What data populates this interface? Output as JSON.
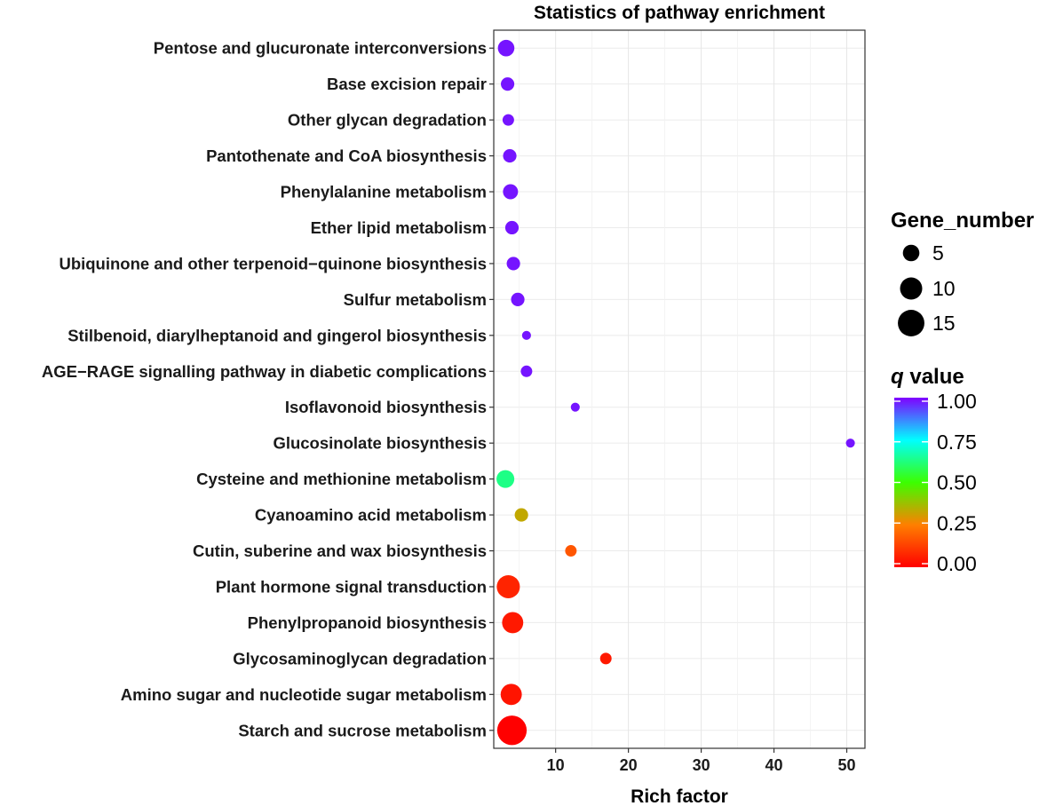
{
  "chart_data": {
    "type": "scatter",
    "title": "Statistics of pathway enrichment",
    "xlabel": "Rich factor",
    "ylabel": "",
    "xlim": [
      1.5,
      52.5
    ],
    "xticks": [
      10,
      20,
      30,
      40,
      50
    ],
    "xtick_labels": [
      "10",
      "20",
      "30",
      "40",
      "50"
    ],
    "grid": true,
    "points": [
      {
        "pathway": "Pentose and glucuronate interconversions",
        "rich_factor": 3.2,
        "gene_number": 5,
        "q_value": 0.98
      },
      {
        "pathway": "Base excision repair",
        "rich_factor": 3.4,
        "gene_number": 3,
        "q_value": 0.98
      },
      {
        "pathway": "Other glycan degradation",
        "rich_factor": 3.5,
        "gene_number": 2,
        "q_value": 0.98
      },
      {
        "pathway": "Pantothenate and CoA biosynthesis",
        "rich_factor": 3.7,
        "gene_number": 3,
        "q_value": 0.98
      },
      {
        "pathway": "Phenylalanine metabolism",
        "rich_factor": 3.8,
        "gene_number": 4,
        "q_value": 0.98
      },
      {
        "pathway": "Ether lipid metabolism",
        "rich_factor": 4.0,
        "gene_number": 3,
        "q_value": 0.98
      },
      {
        "pathway": "Ubiquinone and other terpenoid-quinone biosynthesis",
        "rich_factor": 4.2,
        "gene_number": 3,
        "q_value": 0.98
      },
      {
        "pathway": "Sulfur metabolism",
        "rich_factor": 4.8,
        "gene_number": 3,
        "q_value": 0.98
      },
      {
        "pathway": "Stilbenoid, diarylheptanoid and gingerol biosynthesis",
        "rich_factor": 6.0,
        "gene_number": 1,
        "q_value": 0.98
      },
      {
        "pathway": "AGE-RAGE signalling pathway in diabetic complications",
        "rich_factor": 6.0,
        "gene_number": 2,
        "q_value": 0.98
      },
      {
        "pathway": "Isoflavonoid biosynthesis",
        "rich_factor": 12.7,
        "gene_number": 1,
        "q_value": 0.98
      },
      {
        "pathway": "Glucosinolate biosynthesis",
        "rich_factor": 50.5,
        "gene_number": 1,
        "q_value": 0.98
      },
      {
        "pathway": "Cysteine and methionine metabolism",
        "rich_factor": 3.1,
        "gene_number": 6,
        "q_value": 0.63
      },
      {
        "pathway": "Cyanoamino acid metabolism",
        "rich_factor": 5.3,
        "gene_number": 3,
        "q_value": 0.33
      },
      {
        "pathway": "Cutin, suberine and wax biosynthesis",
        "rich_factor": 12.1,
        "gene_number": 2,
        "q_value": 0.17
      },
      {
        "pathway": "Plant hormone signal transduction",
        "rich_factor": 3.5,
        "gene_number": 11,
        "q_value": 0.07
      },
      {
        "pathway": "Phenylpropanoid biosynthesis",
        "rich_factor": 4.1,
        "gene_number": 9,
        "q_value": 0.05
      },
      {
        "pathway": "Glycosaminoglycan degradation",
        "rich_factor": 16.9,
        "gene_number": 2,
        "q_value": 0.05
      },
      {
        "pathway": "Amino sugar and nucleotide sugar metabolism",
        "rich_factor": 3.9,
        "gene_number": 9,
        "q_value": 0.04
      },
      {
        "pathway": "Starch and sucrose metabolism",
        "rich_factor": 4.0,
        "gene_number": 19,
        "q_value": 0.0
      }
    ],
    "legend_size": {
      "title": "Gene_number",
      "entries": [
        {
          "label": "5",
          "value": 5
        },
        {
          "label": "10",
          "value": 10
        },
        {
          "label": "15",
          "value": 15
        }
      ]
    },
    "legend_color": {
      "title_q": "q",
      "title_rest": " value",
      "ticks": [
        {
          "label": "1.00",
          "value": 1.0
        },
        {
          "label": "0.75",
          "value": 0.75
        },
        {
          "label": "0.50",
          "value": 0.5
        },
        {
          "label": "0.25",
          "value": 0.25
        },
        {
          "label": "0.00",
          "value": 0.0
        }
      ],
      "colors": [
        "#ff0000",
        "#ff7f00",
        "#3cff00",
        "#00ffff",
        "#7f00ff"
      ]
    }
  }
}
